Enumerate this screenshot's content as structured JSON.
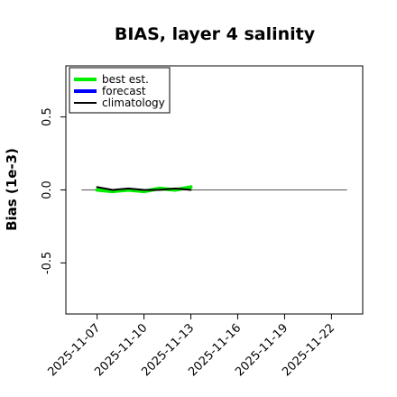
{
  "chart_data": {
    "type": "line",
    "title": "BIAS, layer 4 salinity",
    "ylabel": "Bias (1e-3)",
    "xlabel": "",
    "ylim": [
      -0.85,
      0.85
    ],
    "xlim": [
      "2025-11-05",
      "2025-11-24"
    ],
    "y_ticks": [
      {
        "value": -0.5,
        "label": "-0.5"
      },
      {
        "value": 0.0,
        "label": "0.0"
      },
      {
        "value": 0.5,
        "label": "0.5"
      }
    ],
    "x_ticks": [
      {
        "date": "2025-11-07",
        "label": "2025-11-07",
        "color": "#000000"
      },
      {
        "date": "2025-11-10",
        "label": "2025-11-10",
        "color": "#000000"
      },
      {
        "date": "2025-11-13",
        "label": "2025-11-13",
        "color": "#228B22"
      },
      {
        "date": "2025-11-16",
        "label": "2025-11-16",
        "color": "#000000"
      },
      {
        "date": "2025-11-19",
        "label": "2025-11-19",
        "color": "#000000"
      },
      {
        "date": "2025-11-22",
        "label": "2025-11-22",
        "color": "#000000"
      }
    ],
    "reference_line": {
      "y": 0.0,
      "from": "2025-11-06",
      "to": "2025-11-23",
      "color": "#555555"
    },
    "legend_position": "top-left",
    "series": [
      {
        "name": "best est.",
        "color": "#00ee00",
        "x": [
          "2025-11-07",
          "2025-11-08",
          "2025-11-09",
          "2025-11-10",
          "2025-11-11",
          "2025-11-12",
          "2025-11-13"
        ],
        "y": [
          0.0,
          -0.01,
          0.0,
          -0.01,
          0.01,
          0.0,
          0.02
        ]
      },
      {
        "name": "forecast",
        "color": "#0000ff",
        "x": [],
        "y": []
      },
      {
        "name": "climatology",
        "color": "#000000",
        "x": [
          "2025-11-07",
          "2025-11-08",
          "2025-11-09",
          "2025-11-10",
          "2025-11-11",
          "2025-11-12",
          "2025-11-13"
        ],
        "y": [
          0.02,
          0.0,
          0.01,
          0.0,
          0.0,
          0.01,
          0.0
        ]
      }
    ]
  }
}
